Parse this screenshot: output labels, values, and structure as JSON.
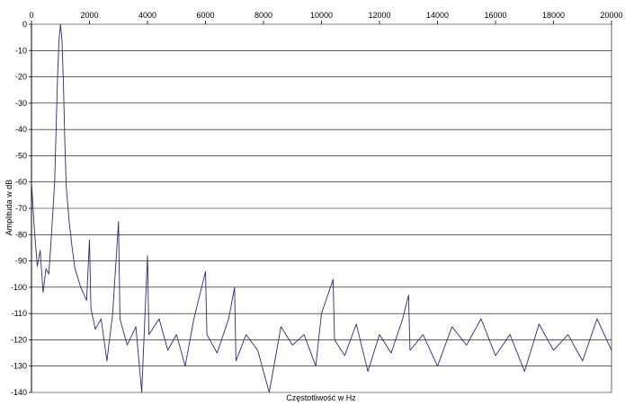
{
  "chart_data": {
    "type": "line",
    "xlabel": "Częstotliwość w Hz",
    "ylabel": "Amplituda w dB",
    "xlim": [
      0,
      20000
    ],
    "ylim": [
      -140,
      0
    ],
    "x_ticks": [
      0,
      2000,
      4000,
      6000,
      8000,
      10000,
      12000,
      14000,
      16000,
      18000,
      20000
    ],
    "y_ticks": [
      0,
      -10,
      -20,
      -30,
      -40,
      -50,
      -60,
      -70,
      -80,
      -90,
      -100,
      -110,
      -120,
      -130,
      -140
    ],
    "grid": {
      "horizontal": true,
      "vertical": false
    },
    "legend": "none",
    "line_color": "#2b2b7a",
    "fundamental": {
      "x": 1000,
      "y": 0
    },
    "harmonic_peaks": [
      {
        "x": 2000,
        "y": -82
      },
      {
        "x": 3000,
        "y": -75
      },
      {
        "x": 4000,
        "y": -88
      },
      {
        "x": 6000,
        "y": -94
      },
      {
        "x": 7000,
        "y": -100
      },
      {
        "x": 10400,
        "y": -97
      },
      {
        "x": 13000,
        "y": -103
      }
    ],
    "series": [
      {
        "values": [
          [
            0,
            -60
          ],
          [
            100,
            -78
          ],
          [
            200,
            -92
          ],
          [
            300,
            -86
          ],
          [
            400,
            -102
          ],
          [
            500,
            -93
          ],
          [
            600,
            -95
          ],
          [
            700,
            -78
          ],
          [
            800,
            -60
          ],
          [
            850,
            -40
          ],
          [
            900,
            -20
          ],
          [
            950,
            -6
          ],
          [
            1000,
            0
          ],
          [
            1050,
            -6
          ],
          [
            1100,
            -22
          ],
          [
            1150,
            -45
          ],
          [
            1200,
            -62
          ],
          [
            1300,
            -75
          ],
          [
            1400,
            -85
          ],
          [
            1500,
            -93
          ],
          [
            1700,
            -100
          ],
          [
            1900,
            -105
          ],
          [
            2000,
            -82
          ],
          [
            2050,
            -108
          ],
          [
            2200,
            -116
          ],
          [
            2400,
            -112
          ],
          [
            2600,
            -128
          ],
          [
            2800,
            -110
          ],
          [
            3000,
            -75
          ],
          [
            3050,
            -112
          ],
          [
            3300,
            -122
          ],
          [
            3600,
            -115
          ],
          [
            3800,
            -140
          ],
          [
            4000,
            -88
          ],
          [
            4050,
            -118
          ],
          [
            4400,
            -112
          ],
          [
            4700,
            -124
          ],
          [
            5000,
            -118
          ],
          [
            5300,
            -130
          ],
          [
            5600,
            -112
          ],
          [
            6000,
            -94
          ],
          [
            6050,
            -118
          ],
          [
            6400,
            -125
          ],
          [
            6800,
            -112
          ],
          [
            7000,
            -100
          ],
          [
            7050,
            -128
          ],
          [
            7400,
            -118
          ],
          [
            7800,
            -124
          ],
          [
            8200,
            -140
          ],
          [
            8600,
            -115
          ],
          [
            9000,
            -122
          ],
          [
            9400,
            -118
          ],
          [
            9800,
            -130
          ],
          [
            10000,
            -110
          ],
          [
            10400,
            -97
          ],
          [
            10450,
            -120
          ],
          [
            10800,
            -126
          ],
          [
            11200,
            -114
          ],
          [
            11600,
            -132
          ],
          [
            12000,
            -118
          ],
          [
            12400,
            -125
          ],
          [
            12800,
            -112
          ],
          [
            13000,
            -103
          ],
          [
            13050,
            -124
          ],
          [
            13500,
            -118
          ],
          [
            14000,
            -130
          ],
          [
            14500,
            -115
          ],
          [
            15000,
            -122
          ],
          [
            15500,
            -112
          ],
          [
            16000,
            -126
          ],
          [
            16500,
            -118
          ],
          [
            17000,
            -132
          ],
          [
            17500,
            -114
          ],
          [
            18000,
            -124
          ],
          [
            18500,
            -118
          ],
          [
            19000,
            -128
          ],
          [
            19500,
            -112
          ],
          [
            20000,
            -124
          ]
        ]
      }
    ]
  }
}
